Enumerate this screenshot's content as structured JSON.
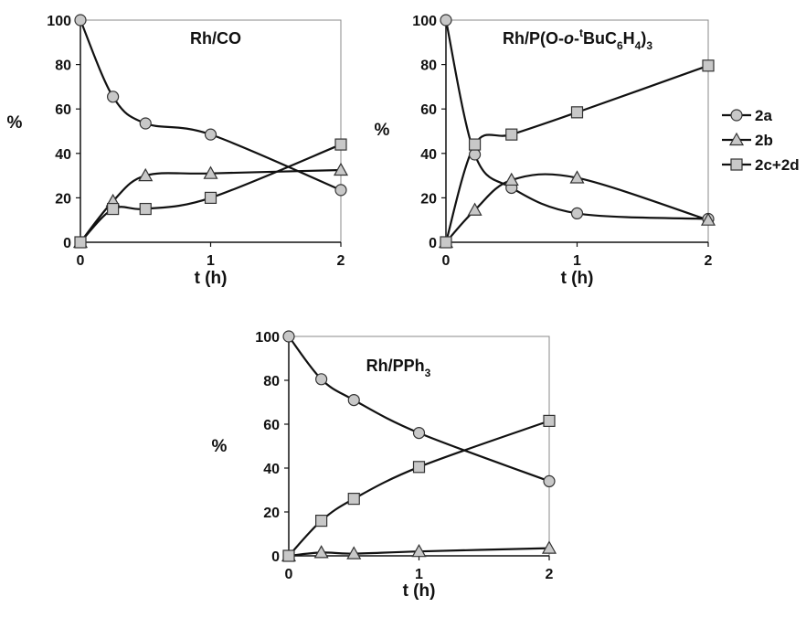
{
  "legend": {
    "entries": [
      {
        "series": "2a",
        "label": "2a",
        "marker": "circle"
      },
      {
        "series": "2b",
        "label": "2b",
        "marker": "triangle"
      },
      {
        "series": "2c+2d",
        "label": "2c+2d",
        "marker": "square"
      }
    ],
    "placement": "right of top-right panel"
  },
  "style": {
    "marker_fill": "#c8c8c8",
    "marker_stroke": "#333333",
    "line_color": "#111111",
    "frame_color": "#888888"
  },
  "chart_data": [
    {
      "type": "line",
      "title_parts": [
        {
          "t": "Rh/CO"
        }
      ],
      "xlabel": "t (h)",
      "ylabel": "%",
      "xticks": [
        0,
        1,
        2
      ],
      "yticks": [
        0,
        20,
        40,
        60,
        80,
        100
      ],
      "xlim": [
        0,
        2
      ],
      "ylim": [
        0,
        100
      ],
      "grid": false,
      "series": [
        {
          "name": "2a",
          "marker": "circle",
          "x": [
            0,
            0.25,
            0.5,
            1,
            2
          ],
          "y": [
            100,
            65.5,
            53.5,
            48.5,
            23.5
          ]
        },
        {
          "name": "2b",
          "marker": "triangle",
          "x": [
            0,
            0.25,
            0.5,
            1,
            2
          ],
          "y": [
            0,
            18.5,
            30,
            31,
            32.5
          ]
        },
        {
          "name": "2c+2d",
          "marker": "square",
          "x": [
            0,
            0.25,
            0.5,
            1,
            2
          ],
          "y": [
            0,
            15,
            15,
            20,
            44
          ]
        }
      ]
    },
    {
      "type": "line",
      "title_parts": [
        {
          "t": "Rh/P(O-"
        },
        {
          "t": "o",
          "style": "italic"
        },
        {
          "t": "-"
        },
        {
          "t": "t",
          "shift": "super"
        },
        {
          "t": "BuC"
        },
        {
          "t": "6",
          "shift": "sub"
        },
        {
          "t": "H"
        },
        {
          "t": "4",
          "shift": "sub"
        },
        {
          "t": ")"
        },
        {
          "t": "3",
          "shift": "sub"
        }
      ],
      "xlabel": "t (h)",
      "ylabel": "%",
      "xticks": [
        0,
        1,
        2
      ],
      "yticks": [
        0,
        20,
        40,
        60,
        80,
        100
      ],
      "xlim": [
        0,
        2
      ],
      "ylim": [
        0,
        100
      ],
      "grid": false,
      "series": [
        {
          "name": "2a",
          "marker": "circle",
          "x": [
            0,
            0.22,
            0.5,
            1,
            2
          ],
          "y": [
            100,
            39.5,
            24.5,
            13,
            10.5
          ]
        },
        {
          "name": "2b",
          "marker": "triangle",
          "x": [
            0,
            0.22,
            0.5,
            1,
            2
          ],
          "y": [
            0,
            14.5,
            28,
            29,
            10
          ]
        },
        {
          "name": "2c+2d",
          "marker": "square",
          "x": [
            0,
            0.22,
            0.5,
            1,
            2
          ],
          "y": [
            0,
            44,
            48.5,
            58.5,
            79.5
          ]
        }
      ]
    },
    {
      "type": "line",
      "title_parts": [
        {
          "t": "Rh/PPh"
        },
        {
          "t": "3",
          "shift": "sub"
        }
      ],
      "xlabel": "t (h)",
      "ylabel": "%",
      "xticks": [
        0,
        1,
        2
      ],
      "yticks": [
        0,
        20,
        40,
        60,
        80,
        100
      ],
      "xlim": [
        0,
        2
      ],
      "ylim": [
        0,
        100
      ],
      "grid": false,
      "series": [
        {
          "name": "2a",
          "marker": "circle",
          "x": [
            0,
            0.25,
            0.5,
            1,
            2
          ],
          "y": [
            100,
            80.5,
            71,
            56,
            34
          ]
        },
        {
          "name": "2b",
          "marker": "triangle",
          "x": [
            0,
            0.25,
            0.5,
            1,
            2
          ],
          "y": [
            0,
            1.5,
            1,
            2,
            3.5
          ]
        },
        {
          "name": "2c+2d",
          "marker": "square",
          "x": [
            0,
            0.25,
            0.5,
            1,
            2
          ],
          "y": [
            0,
            16,
            26,
            40.5,
            61.5
          ]
        }
      ]
    }
  ]
}
